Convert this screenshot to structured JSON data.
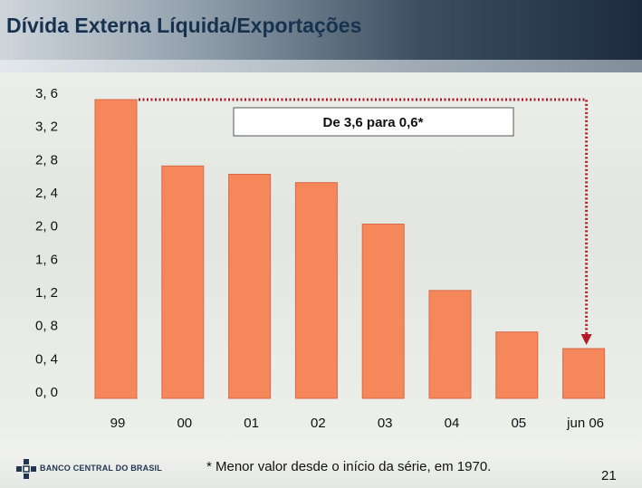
{
  "title": "Dívida Externa Líquida/Exportações",
  "footnote": "* Menor valor desde o início da série, em 1970.",
  "page_number": "21",
  "logo": {
    "text": "BANCO CENTRAL DO BRASIL",
    "icon": "bcb-logo-icon"
  },
  "colors": {
    "bar": "#f5875b",
    "bar_stroke": "#d9694a",
    "arrow": "#b4192a",
    "title": "#17324f"
  },
  "chart_data": {
    "type": "bar",
    "title": "",
    "xlabel": "",
    "ylabel": "",
    "categories": [
      "99",
      "00",
      "01",
      "02",
      "03",
      "04",
      "05",
      "jun 06"
    ],
    "values": [
      3.6,
      2.8,
      2.7,
      2.6,
      2.1,
      1.3,
      0.8,
      0.6
    ],
    "ylim": [
      0,
      3.6
    ],
    "yticks": [
      "3, 6",
      "3, 2",
      "2, 8",
      "2, 4",
      "2, 0",
      "1, 6",
      "1, 2",
      "0, 8",
      "0, 4",
      "0, 0"
    ],
    "ytick_values": [
      3.6,
      3.2,
      2.8,
      2.4,
      2.0,
      1.6,
      1.2,
      0.8,
      0.4,
      0.0
    ],
    "annotation": {
      "text": "De 3,6 para 0,6*",
      "from": "99",
      "to": "jun 06"
    },
    "grid": false,
    "legend": "none"
  }
}
